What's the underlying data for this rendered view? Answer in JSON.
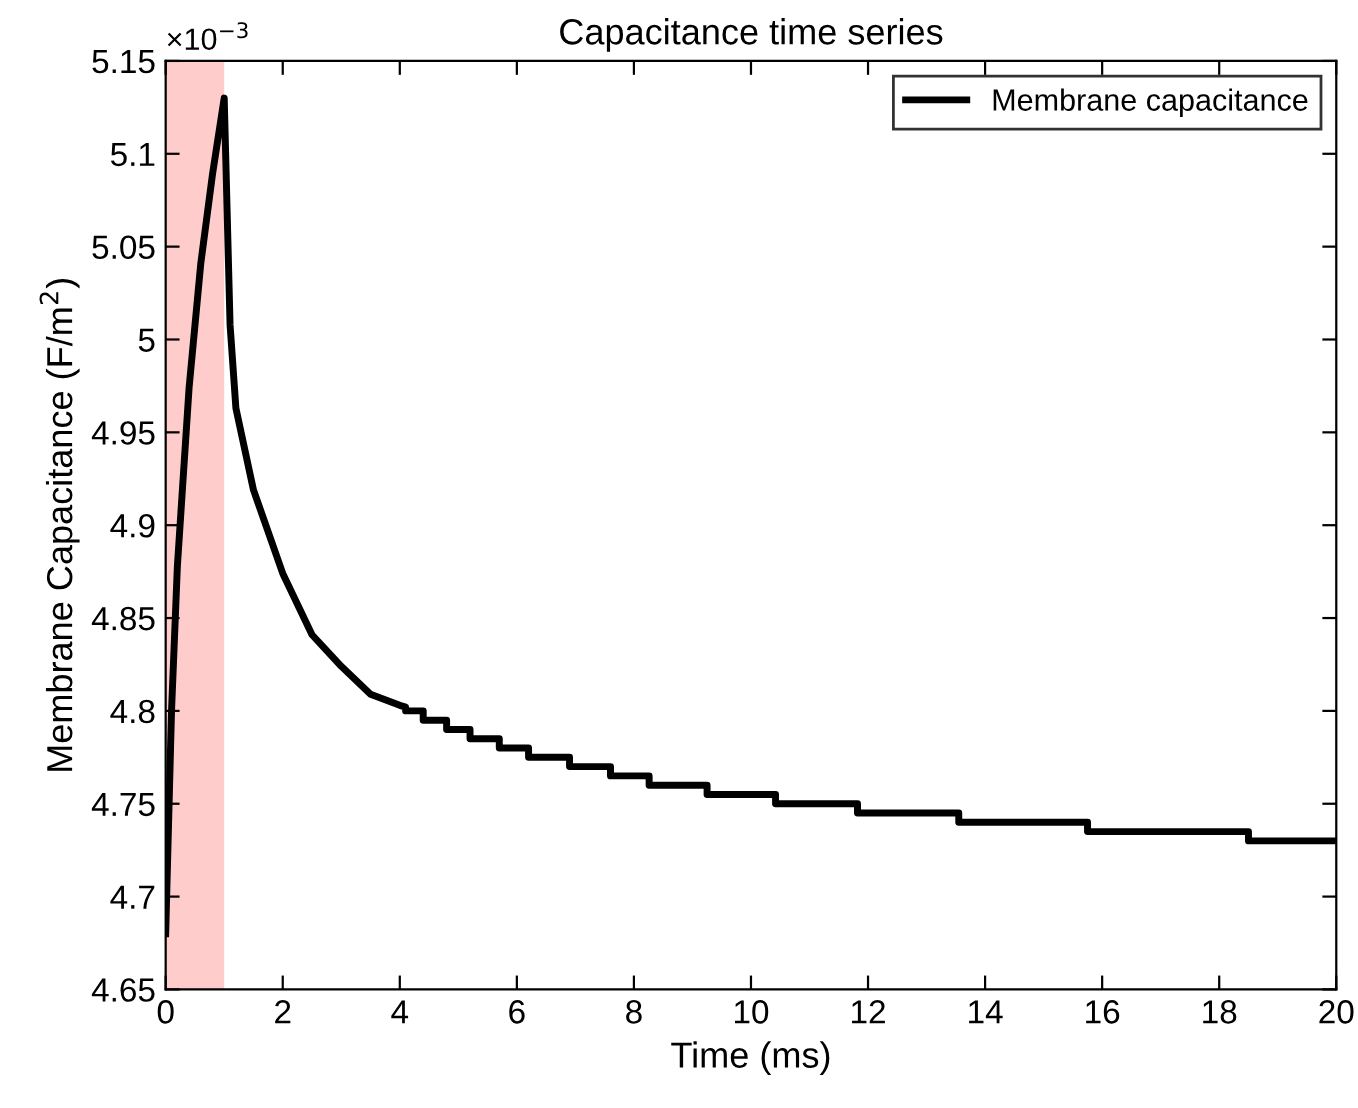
{
  "chart_data": {
    "type": "line",
    "title": "Capacitance time series",
    "xlabel": "Time (ms)",
    "ylabel": "Membrane Capacitance (F/m$^{2}$)",
    "annotations": [
      "×10$^{−3}$"
    ],
    "x": [
      0,
      0.1,
      0.2,
      0.4,
      0.6,
      0.8,
      1,
      1.1,
      1.2,
      1.5,
      2,
      2.5,
      3,
      3.5,
      4,
      4.1,
      4.1,
      4.4,
      4.4,
      4.8,
      4.8,
      5.2,
      5.2,
      5.7,
      5.7,
      6.2,
      6.2,
      6.9,
      6.9,
      7.6,
      7.6,
      8.26,
      8.26,
      9.25,
      9.25,
      10.42,
      10.42,
      11.82,
      11.82,
      13.55,
      13.55,
      15.75,
      15.75,
      18.5,
      18.5,
      20
    ],
    "series": [
      {
        "name": "Membrane capacitance",
        "color": "#000000",
        "values": [
          4.68,
          4.8,
          4.878,
          4.974,
          5.041,
          5.089,
          5.13,
          5.008,
          4.963,
          4.919,
          4.874,
          4.841,
          4.824,
          4.809,
          4.803,
          4.802,
          4.8,
          4.8,
          4.795,
          4.795,
          4.79,
          4.79,
          4.785,
          4.785,
          4.78,
          4.78,
          4.775,
          4.775,
          4.77,
          4.77,
          4.765,
          4.765,
          4.76,
          4.76,
          4.755,
          4.755,
          4.75,
          4.75,
          4.745,
          4.745,
          4.74,
          4.74,
          4.735,
          4.735,
          4.73,
          4.73
        ]
      }
    ],
    "xlim": [
      0,
      20
    ],
    "xticks": [
      0,
      2,
      4,
      6,
      8,
      10,
      12,
      14,
      16,
      18,
      20
    ],
    "ylim": [
      4.65,
      5.15
    ],
    "yticks": [
      4.65,
      4.7,
      4.75,
      4.8,
      4.85,
      4.9,
      4.95,
      5,
      5.05,
      5.1,
      5.15
    ],
    "bands": [
      {
        "axis": "x",
        "from": 0,
        "to": 1,
        "color": "#ffcccc"
      }
    ],
    "legend": "top right",
    "grid": false,
    "marker": "none",
    "line_style": "solid"
  }
}
